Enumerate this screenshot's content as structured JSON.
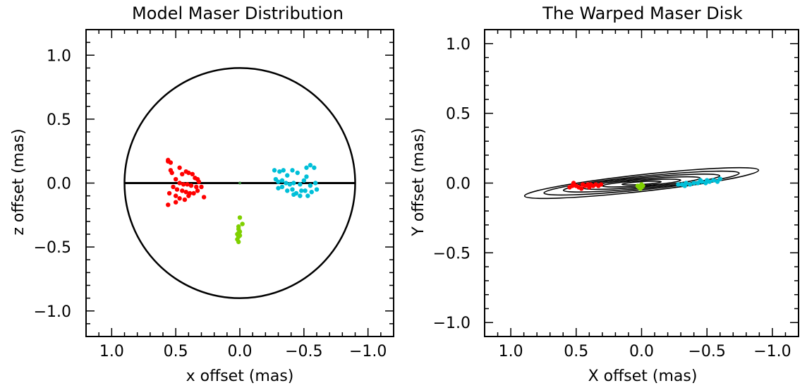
{
  "chart_data": [
    {
      "type": "scatter",
      "title": "Model Maser Distribution",
      "xlabel": "x offset (mas)",
      "ylabel": "z offset (mas)",
      "xlim": [
        1.2,
        -1.2
      ],
      "ylim": [
        -1.2,
        1.2
      ],
      "x_ticks": [
        "1.0",
        "0.5",
        "0.0",
        "−0.5",
        "−1.0"
      ],
      "x_tick_values": [
        1.0,
        0.5,
        0.0,
        -0.5,
        -1.0
      ],
      "y_ticks": [
        "1.0",
        "0.5",
        "0.0",
        "−0.5",
        "−1.0"
      ],
      "y_tick_values": [
        1.0,
        0.5,
        0.0,
        -0.5,
        -1.0
      ],
      "grid": false,
      "circle_radius": 0.9,
      "series": [
        {
          "color": "#ff0000",
          "points": [
            [
              0.56,
              0.17
            ],
            [
              0.54,
              0.16
            ],
            [
              0.56,
              0.18
            ],
            [
              0.54,
              0.1
            ],
            [
              0.53,
              0.08
            ],
            [
              0.47,
              0.12
            ],
            [
              0.45,
              0.07
            ],
            [
              0.42,
              0.09
            ],
            [
              0.4,
              0.08
            ],
            [
              0.37,
              0.07
            ],
            [
              0.35,
              0.04
            ],
            [
              0.33,
              0.03
            ],
            [
              0.32,
              0.01
            ],
            [
              0.5,
              0.03
            ],
            [
              0.47,
              0.0
            ],
            [
              0.44,
              -0.01
            ],
            [
              0.41,
              -0.01
            ],
            [
              0.38,
              -0.02
            ],
            [
              0.34,
              -0.03
            ],
            [
              0.3,
              -0.03
            ],
            [
              0.52,
              -0.03
            ],
            [
              0.49,
              -0.05
            ],
            [
              0.45,
              -0.06
            ],
            [
              0.42,
              -0.07
            ],
            [
              0.39,
              -0.08
            ],
            [
              0.36,
              -0.08
            ],
            [
              0.33,
              -0.06
            ],
            [
              0.28,
              -0.11
            ],
            [
              0.55,
              -0.08
            ],
            [
              0.5,
              -0.1
            ],
            [
              0.47,
              -0.12
            ],
            [
              0.43,
              -0.13
            ],
            [
              0.4,
              -0.1
            ],
            [
              0.56,
              -0.17
            ],
            [
              0.5,
              -0.15
            ]
          ]
        },
        {
          "color": "#00bfd8",
          "points": [
            [
              -0.27,
              0.1
            ],
            [
              -0.31,
              0.09
            ],
            [
              -0.34,
              0.1
            ],
            [
              -0.37,
              0.06
            ],
            [
              -0.41,
              0.1
            ],
            [
              -0.45,
              0.08
            ],
            [
              -0.52,
              0.12
            ],
            [
              -0.55,
              0.14
            ],
            [
              -0.58,
              0.12
            ],
            [
              -0.28,
              0.03
            ],
            [
              -0.3,
              0.01
            ],
            [
              -0.33,
              0.02
            ],
            [
              -0.36,
              0.0
            ],
            [
              -0.39,
              -0.01
            ],
            [
              -0.42,
              0.0
            ],
            [
              -0.47,
              -0.01
            ],
            [
              -0.5,
              0.02
            ],
            [
              -0.55,
              -0.02
            ],
            [
              -0.59,
              0.0
            ],
            [
              -0.3,
              -0.04
            ],
            [
              -0.33,
              -0.03
            ],
            [
              -0.37,
              -0.06
            ],
            [
              -0.41,
              -0.05
            ],
            [
              -0.44,
              -0.08
            ],
            [
              -0.48,
              -0.06
            ],
            [
              -0.51,
              -0.06
            ],
            [
              -0.56,
              -0.07
            ],
            [
              -0.42,
              -0.09
            ],
            [
              -0.47,
              -0.1
            ],
            [
              -0.53,
              -0.1
            ],
            [
              -0.6,
              -0.05
            ],
            [
              -0.52,
              0.05
            ]
          ]
        },
        {
          "color": "#7fd000",
          "points": [
            [
              0.0,
              -0.27
            ],
            [
              -0.02,
              -0.32
            ],
            [
              0.01,
              -0.34
            ],
            [
              0.01,
              -0.36
            ],
            [
              0.0,
              -0.38
            ],
            [
              0.01,
              -0.39
            ],
            [
              0.02,
              -0.4
            ],
            [
              0.0,
              -0.41
            ],
            [
              0.01,
              -0.42
            ],
            [
              0.02,
              -0.44
            ],
            [
              0.01,
              -0.46
            ]
          ]
        },
        {
          "color": "#2e7d32",
          "points": [
            [
              0.0,
              0.0
            ]
          ]
        }
      ]
    },
    {
      "type": "scatter",
      "title": "The Warped Maser Disk",
      "xlabel": "X offset (mas)",
      "ylabel": "Y offset (mas)",
      "xlim": [
        1.2,
        -1.2
      ],
      "ylim": [
        -1.1,
        1.1
      ],
      "x_ticks": [
        "1.0",
        "0.5",
        "0.0",
        "−0.5",
        "−1.0"
      ],
      "x_tick_values": [
        1.0,
        0.5,
        0.0,
        -0.5,
        -1.0
      ],
      "y_ticks": [
        "1.0",
        "0.5",
        "0.0",
        "−0.5",
        "−1.0"
      ],
      "y_tick_values": [
        1.0,
        0.5,
        0.0,
        -0.5,
        -1.0
      ],
      "grid": false,
      "rings": [
        {
          "rx": 0.9,
          "ry": 0.06,
          "pa": 6.3
        },
        {
          "rx": 0.75,
          "ry": 0.048,
          "pa": 5.8
        },
        {
          "rx": 0.6,
          "ry": 0.038,
          "pa": 5.3
        },
        {
          "rx": 0.45,
          "ry": 0.028,
          "pa": 4.8
        },
        {
          "rx": 0.3,
          "ry": 0.019,
          "pa": 4.2
        },
        {
          "rx": 0.15,
          "ry": 0.01,
          "pa": 3.6
        }
      ],
      "series": [
        {
          "color": "#ff0000",
          "points": [
            [
              0.55,
              -0.03
            ],
            [
              0.53,
              -0.02
            ],
            [
              0.5,
              -0.02
            ],
            [
              0.48,
              -0.03
            ],
            [
              0.45,
              -0.01
            ],
            [
              0.43,
              -0.02
            ],
            [
              0.41,
              -0.01
            ],
            [
              0.39,
              -0.01
            ],
            [
              0.37,
              -0.02
            ],
            [
              0.35,
              -0.01
            ],
            [
              0.33,
              -0.02
            ],
            [
              0.31,
              -0.01
            ],
            [
              0.46,
              -0.04
            ],
            [
              0.4,
              -0.03
            ],
            [
              0.52,
              0.0
            ]
          ]
        },
        {
          "color": "#00bfd8",
          "points": [
            [
              -0.28,
              -0.01
            ],
            [
              -0.31,
              -0.01
            ],
            [
              -0.34,
              0.0
            ],
            [
              -0.37,
              -0.01
            ],
            [
              -0.4,
              0.0
            ],
            [
              -0.43,
              0.0
            ],
            [
              -0.46,
              0.01
            ],
            [
              -0.49,
              0.0
            ],
            [
              -0.52,
              0.01
            ],
            [
              -0.55,
              0.02
            ],
            [
              -0.58,
              0.01
            ],
            [
              -0.33,
              -0.02
            ],
            [
              -0.45,
              0.02
            ],
            [
              -0.5,
              0.02
            ],
            [
              -0.6,
              0.03
            ]
          ]
        },
        {
          "color": "#7fd000",
          "points": [
            [
              0.01,
              -0.02
            ],
            [
              0.02,
              -0.03
            ],
            [
              0.0,
              -0.01
            ],
            [
              -0.01,
              -0.02
            ],
            [
              0.01,
              -0.04
            ],
            [
              0.03,
              -0.02
            ],
            [
              0.0,
              -0.03
            ]
          ]
        }
      ]
    }
  ]
}
